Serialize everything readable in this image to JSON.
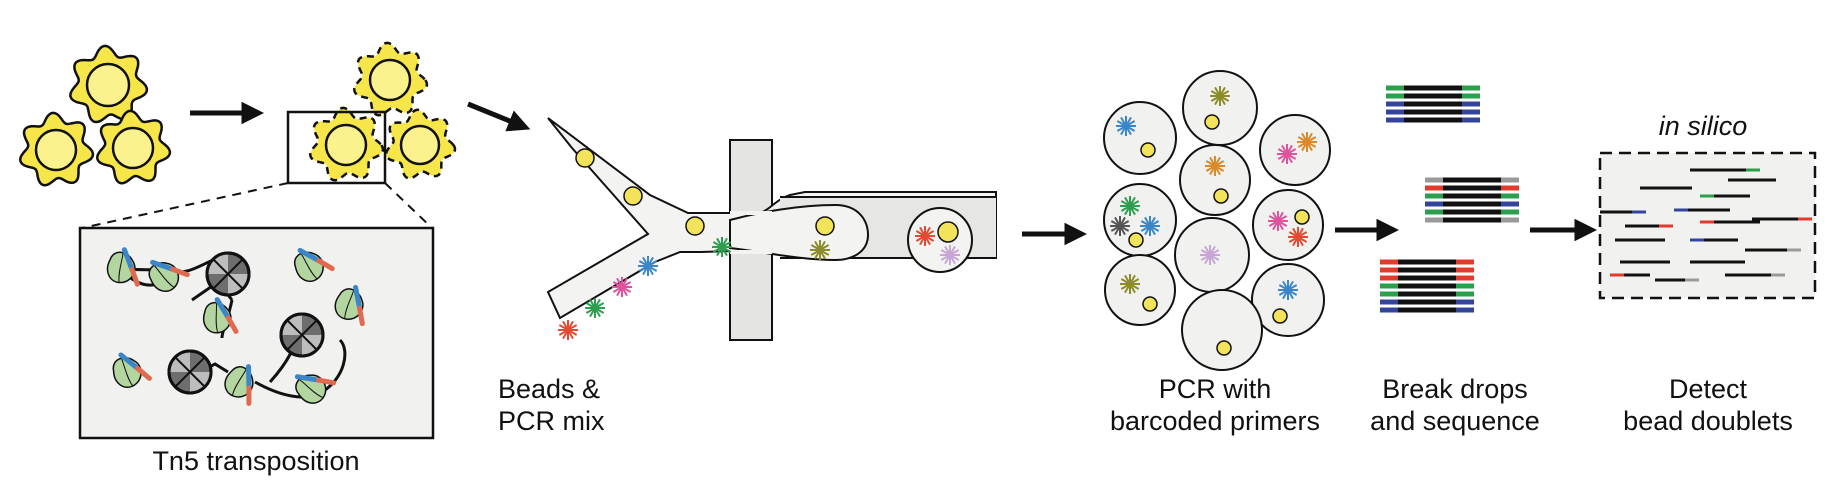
{
  "labels": {
    "tn5": "Tn5 transposition",
    "beads_line1": "Beads &",
    "beads_line2": "PCR mix",
    "pcr_line1": "PCR with",
    "pcr_line2": "barcoded primers",
    "break_line1": "Break drops",
    "break_line2": "and sequence",
    "detect_line1": "Detect",
    "detect_line2": "bead doublets",
    "in_silico": "in silico"
  },
  "colors": {
    "cell_fill": "#f6e64a",
    "nucleus_fill": "#fbf28e",
    "bead_fill": "#f3e35a",
    "tn5_fill": "#b3d6a0",
    "chamber_fill": "#f1f1f0",
    "channel_fill": "#f3f3f2",
    "dark_fill": "#6e6e6e",
    "barcode_colors": [
      "#e34a33",
      "#2e9e4f",
      "#3a86c8",
      "#e0529c",
      "#8c8c2a",
      "#d98a2a",
      "#c7a6d6",
      "#555555"
    ],
    "read_colors": [
      "#e23b2e",
      "#2aa04c",
      "#33449a",
      "#9a9a9a"
    ]
  }
}
